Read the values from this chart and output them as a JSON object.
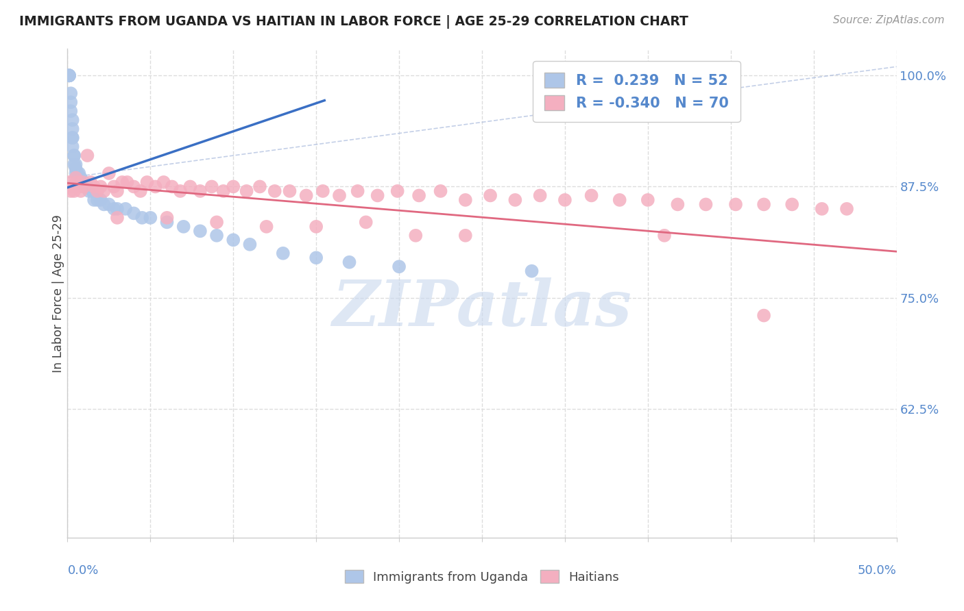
{
  "title": "IMMIGRANTS FROM UGANDA VS HAITIAN IN LABOR FORCE | AGE 25-29 CORRELATION CHART",
  "source": "Source: ZipAtlas.com",
  "ylabel": "In Labor Force | Age 25-29",
  "ytick_vals": [
    1.0,
    0.875,
    0.75,
    0.625
  ],
  "ytick_labels": [
    "100.0%",
    "87.5%",
    "75.0%",
    "62.5%"
  ],
  "xlim": [
    0.0,
    0.5
  ],
  "ylim": [
    0.48,
    1.03
  ],
  "legend_r_uganda": "0.239",
  "legend_n_uganda": "52",
  "legend_r_haitian": "-0.340",
  "legend_n_haitian": "70",
  "color_uganda": "#aec6e8",
  "color_haitian": "#f4afc0",
  "color_uganda_line": "#3a6fc4",
  "color_haitian_line": "#e06880",
  "color_axis_text": "#5588cc",
  "color_legend_text": "#5588cc",
  "watermark_text": "ZIPatlas",
  "watermark_color": "#c8d8ee",
  "grid_color": "#dddddd",
  "uganda_x": [
    0.001,
    0.001,
    0.001,
    0.001,
    0.001,
    0.001,
    0.002,
    0.002,
    0.002,
    0.003,
    0.003,
    0.003,
    0.003,
    0.003,
    0.004,
    0.004,
    0.004,
    0.005,
    0.005,
    0.005,
    0.006,
    0.007,
    0.008,
    0.009,
    0.01,
    0.01,
    0.011,
    0.012,
    0.013,
    0.015,
    0.016,
    0.018,
    0.02,
    0.022,
    0.025,
    0.028,
    0.03,
    0.035,
    0.04,
    0.045,
    0.05,
    0.06,
    0.07,
    0.08,
    0.09,
    0.1,
    0.11,
    0.13,
    0.15,
    0.17,
    0.2,
    0.28
  ],
  "uganda_y": [
    1.0,
    1.0,
    1.0,
    1.0,
    1.0,
    1.0,
    0.98,
    0.97,
    0.96,
    0.95,
    0.94,
    0.93,
    0.93,
    0.92,
    0.91,
    0.91,
    0.9,
    0.9,
    0.895,
    0.89,
    0.89,
    0.89,
    0.885,
    0.88,
    0.88,
    0.875,
    0.875,
    0.875,
    0.87,
    0.87,
    0.86,
    0.86,
    0.86,
    0.855,
    0.855,
    0.85,
    0.85,
    0.85,
    0.845,
    0.84,
    0.84,
    0.835,
    0.83,
    0.825,
    0.82,
    0.815,
    0.81,
    0.8,
    0.795,
    0.79,
    0.785,
    0.78
  ],
  "haitian_x": [
    0.001,
    0.002,
    0.003,
    0.004,
    0.005,
    0.006,
    0.007,
    0.008,
    0.009,
    0.01,
    0.012,
    0.014,
    0.016,
    0.018,
    0.02,
    0.022,
    0.025,
    0.028,
    0.03,
    0.033,
    0.036,
    0.04,
    0.044,
    0.048,
    0.053,
    0.058,
    0.063,
    0.068,
    0.074,
    0.08,
    0.087,
    0.094,
    0.1,
    0.108,
    0.116,
    0.125,
    0.134,
    0.144,
    0.154,
    0.164,
    0.175,
    0.187,
    0.199,
    0.212,
    0.225,
    0.24,
    0.255,
    0.27,
    0.285,
    0.3,
    0.316,
    0.333,
    0.35,
    0.368,
    0.385,
    0.403,
    0.42,
    0.437,
    0.455,
    0.47,
    0.03,
    0.06,
    0.09,
    0.12,
    0.15,
    0.18,
    0.21,
    0.24,
    0.36,
    0.42
  ],
  "haitian_y": [
    0.88,
    0.87,
    0.875,
    0.87,
    0.885,
    0.88,
    0.875,
    0.87,
    0.88,
    0.875,
    0.91,
    0.88,
    0.875,
    0.87,
    0.875,
    0.87,
    0.89,
    0.875,
    0.87,
    0.88,
    0.88,
    0.875,
    0.87,
    0.88,
    0.875,
    0.88,
    0.875,
    0.87,
    0.875,
    0.87,
    0.875,
    0.87,
    0.875,
    0.87,
    0.875,
    0.87,
    0.87,
    0.865,
    0.87,
    0.865,
    0.87,
    0.865,
    0.87,
    0.865,
    0.87,
    0.86,
    0.865,
    0.86,
    0.865,
    0.86,
    0.865,
    0.86,
    0.86,
    0.855,
    0.855,
    0.855,
    0.855,
    0.855,
    0.85,
    0.85,
    0.84,
    0.84,
    0.835,
    0.83,
    0.83,
    0.835,
    0.82,
    0.82,
    0.82,
    0.73
  ],
  "ug_line_x": [
    0.0,
    0.155
  ],
  "ug_line_y": [
    0.874,
    0.972
  ],
  "ht_line_x": [
    0.0,
    0.5
  ],
  "ht_line_y": [
    0.879,
    0.802
  ],
  "ref_line_x": [
    0.0,
    0.5
  ],
  "ref_line_y": [
    0.885,
    1.01
  ]
}
